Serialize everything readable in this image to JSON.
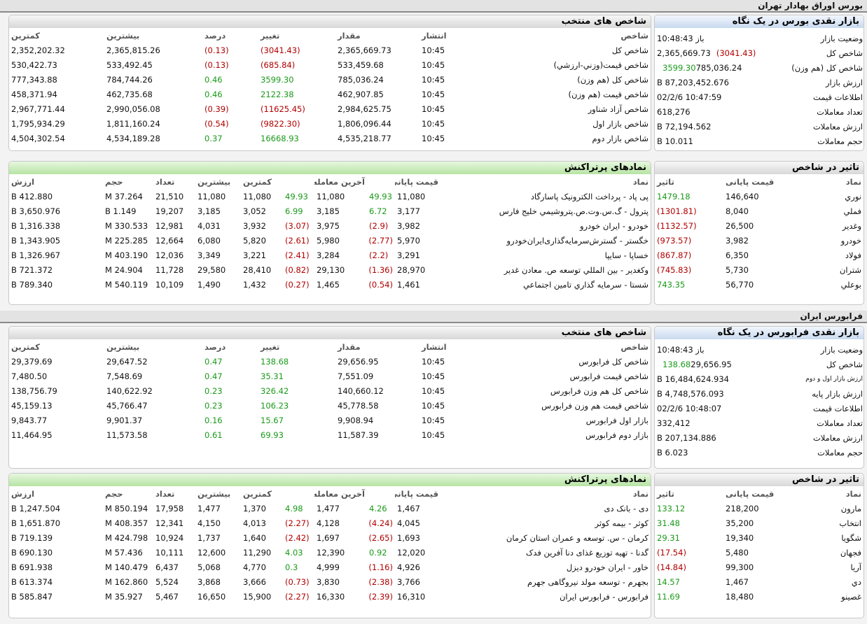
{
  "s1": {
    "title": "بورس اوراق بهادار تهران"
  },
  "s2": {
    "title": "فرابورس ایران"
  },
  "b_glance": {
    "title": "بازار نقدی بورس در یک نگاه",
    "rows": [
      {
        "label": "وضعیت بازار",
        "value": "باز 10:48:43",
        "chg": ""
      },
      {
        "label": "شاخص کل",
        "value": "2,365,669.73",
        "chg": "(3041.43)"
      },
      {
        "label": "شاخص کل (هم وزن)",
        "value": "785,036.24",
        "chg": "3599.30"
      },
      {
        "label": "ارزش بازار",
        "value": "87,203,452.676 B",
        "chg": ""
      },
      {
        "label": "اطلاعات قیمت",
        "value": "10:47:59 02/2/6",
        "chg": ""
      },
      {
        "label": "تعداد معاملات",
        "value": "618,276",
        "chg": ""
      },
      {
        "label": "ارزش معاملات",
        "value": "72,194.562 B",
        "chg": ""
      },
      {
        "label": "حجم معاملات",
        "value": "10.011 B",
        "chg": ""
      }
    ]
  },
  "b_idx": {
    "title": "شاخص های منتخب",
    "headers": [
      "شاخص",
      "انتشار",
      "مقدار",
      "تغییر",
      "درصد",
      "بیشترین",
      "کمترین"
    ],
    "rows": [
      [
        "شاخص كل",
        "10:45",
        "2,365,669.73",
        "(3041.43)",
        "(0.13)",
        "2,365,815.26",
        "2,352,202.32"
      ],
      [
        "شاخص قيمت(وزني-ارزشي)",
        "10:45",
        "533,459.68",
        "(685.84)",
        "(0.13)",
        "533,492.45",
        "530,422.73"
      ],
      [
        "شاخص كل (هم وزن)",
        "10:45",
        "785,036.24",
        "3599.30",
        "0.46",
        "784,744.26",
        "777,343.88"
      ],
      [
        "شاخص قيمت (هم وزن)",
        "10:45",
        "462,907.85",
        "2122.38",
        "0.46",
        "462,735.68",
        "458,371.94"
      ],
      [
        "شاخص آزاد شناور",
        "10:45",
        "2,984,625.75",
        "(11625.45)",
        "(0.39)",
        "2,990,056.08",
        "2,967,771.44"
      ],
      [
        "شاخص بازار اول",
        "10:45",
        "1,806,096.44",
        "(9822.30)",
        "(0.54)",
        "1,811,160.24",
        "1,795,934.29"
      ],
      [
        "شاخص بازار دوم",
        "10:45",
        "4,535,218.77",
        "16668.93",
        "0.37",
        "4,534,189.28",
        "4,504,302.54"
      ]
    ]
  },
  "b_impact": {
    "title": "تاثیر در شاخص",
    "headers": [
      "نماد",
      "قیمت پایانی",
      "تاثیر"
    ],
    "rows": [
      [
        "نوري",
        "146,640",
        "1479.18"
      ],
      [
        "فملي",
        "8,040",
        "(1301.81)"
      ],
      [
        "وغدير",
        "26,500",
        "(1132.57)"
      ],
      [
        "خودرو",
        "3,982",
        "(973.57)"
      ],
      [
        "فولاد",
        "6,350",
        "(867.87)"
      ],
      [
        "شتران",
        "5,730",
        "(745.83)"
      ],
      [
        "بوعلي",
        "56,770",
        "743.35"
      ]
    ]
  },
  "b_top": {
    "title": "نمادهای پرتراکنش",
    "headers": [
      "نماد",
      "قیمت پایانی",
      "",
      "آخرین معامله",
      "",
      "کمترین",
      "بیشترین",
      "تعداد",
      "حجم",
      "ارزش"
    ],
    "rows": [
      [
        "پی پاد - پرداخت الکترونیک پاسارگاد",
        "11,080",
        "49.93",
        "11,080",
        "49.93",
        "11,080",
        "11,080",
        "21,510",
        "37.264 M",
        "412.880 B"
      ],
      [
        "پترول - گ.س.وت.ص.پتروشیمي خلیج فارس",
        "3,177",
        "6.72",
        "3,185",
        "6.99",
        "3,052",
        "3,185",
        "19,207",
        "1.149 B",
        "3,650.976 B"
      ],
      [
        "خودرو - ایران خودرو",
        "3,982",
        "(2.9)",
        "3,975",
        "(3.07)",
        "3,932",
        "4,031",
        "12,981",
        "330.533 M",
        "1,316.338 B"
      ],
      [
        "خگستر - گسترش‌سرمایه‌گذاری‌ایران‌خودرو",
        "5,970",
        "(2.77)",
        "5,980",
        "(2.61)",
        "5,820",
        "6,080",
        "12,664",
        "225.285 M",
        "1,343.905 B"
      ],
      [
        "خساپا - سايپا",
        "3,291",
        "(2.2)",
        "3,284",
        "(2.41)",
        "3,221",
        "3,349",
        "12,036",
        "403.190 M",
        "1,326.967 B"
      ],
      [
        "وكغدير - بين المللي توسعه ص. معادن غدير",
        "28,970",
        "(1.36)",
        "29,130",
        "(0.82)",
        "28,410",
        "29,580",
        "11,728",
        "24.904 M",
        "721.372 B"
      ],
      [
        "شستا - سرمايه گذاري تامين اجتماعي",
        "1,461",
        "(0.54)",
        "1,465",
        "(0.27)",
        "1,432",
        "1,490",
        "10,109",
        "540.119 M",
        "789.340 B"
      ]
    ]
  },
  "f_glance": {
    "title": "بازار نقدی فرابورس در یک نگاه",
    "rows": [
      {
        "label": "وضعیت بازار",
        "value": "باز 10:48:43",
        "chg": "",
        "small": false
      },
      {
        "label": "شاخص کل",
        "value": "29,656.95",
        "chg": "138.68",
        "small": false
      },
      {
        "label": "ارزش بازار اول و دوم",
        "value": "16,484,624.934 B",
        "chg": "",
        "small": true
      },
      {
        "label": "ارزش بازار پایه",
        "value": "4,748,576.093 B",
        "chg": "",
        "small": false
      },
      {
        "label": "اطلاعات قیمت",
        "value": "10:48:07 02/2/6",
        "chg": "",
        "small": false
      },
      {
        "label": "تعداد معاملات",
        "value": "332,412",
        "chg": "",
        "small": false
      },
      {
        "label": "ارزش معاملات",
        "value": "207,134.886 B",
        "chg": "",
        "small": false
      },
      {
        "label": "حجم معاملات",
        "value": "6.023 B",
        "chg": "",
        "small": false
      }
    ]
  },
  "f_idx": {
    "title": "شاخص های منتخب",
    "headers": [
      "شاخص",
      "انتشار",
      "مقدار",
      "تغییر",
      "درصد",
      "بیشترین",
      "کمترین"
    ],
    "rows": [
      [
        "شاخص کل فرابورس",
        "10:45",
        "29,656.95",
        "138.68",
        "0.47",
        "29,647.52",
        "29,379.69"
      ],
      [
        "شاخص قیمت فرابورس",
        "10:45",
        "7,551.09",
        "35.31",
        "0.47",
        "7,548.69",
        "7,480.50"
      ],
      [
        "شاخص کل هم وزن فرابورس",
        "10:45",
        "140,660.12",
        "326.42",
        "0.23",
        "140,622.92",
        "138,756.79"
      ],
      [
        "شاخص قیمت هم وزن فرابورس",
        "10:45",
        "45,778.58",
        "106.23",
        "0.23",
        "45,766.47",
        "45,159.13"
      ],
      [
        "بازار اول فرابورس",
        "10:45",
        "9,908.94",
        "15.67",
        "0.16",
        "9,901.37",
        "9,843.77"
      ],
      [
        "بازار دوم فرابورس",
        "10:45",
        "11,587.39",
        "69.93",
        "0.61",
        "11,573.58",
        "11,464.95"
      ]
    ]
  },
  "f_impact": {
    "title": "تاثیر در شاخص",
    "headers": [
      "نماد",
      "قیمت پایانی",
      "تاثیر"
    ],
    "rows": [
      [
        "مارون",
        "218,200",
        "133.12"
      ],
      [
        "انتخاب",
        "35,200",
        "31.48"
      ],
      [
        "شگويا",
        "19,340",
        "29.31"
      ],
      [
        "فجهان",
        "5,480",
        "(17.54)"
      ],
      [
        "آريا",
        "99,300",
        "(14.84)"
      ],
      [
        "دي",
        "1,467",
        "14.57"
      ],
      [
        "غصينو",
        "18,480",
        "11.69"
      ]
    ]
  },
  "f_top": {
    "title": "نمادهای پرتراکنش",
    "headers": [
      "نماد",
      "قیمت پایانی",
      "",
      "آخرین معامله",
      "",
      "کمترین",
      "بیشترین",
      "تعداد",
      "حجم",
      "ارزش"
    ],
    "rows": [
      [
        "دی - بانک دی",
        "1,467",
        "4.26",
        "1,477",
        "4.98",
        "1,370",
        "1,477",
        "17,958",
        "850.194 M",
        "1,247.504 B"
      ],
      [
        "کوثر - بیمه کوثر",
        "4,045",
        "(4.24)",
        "4,128",
        "(2.27)",
        "4,013",
        "4,150",
        "12,341",
        "408.357 M",
        "1,651.870 B"
      ],
      [
        "کرمان - س. توسعه و عمران استان کرمان",
        "1,693",
        "(2.65)",
        "1,697",
        "(2.42)",
        "1,640",
        "1,737",
        "10,924",
        "424.798 M",
        "719.139 B"
      ],
      [
        "گدنا - تهیه توزیع غذای دنا آفرین فدک",
        "12,020",
        "0.92",
        "12,390",
        "4.03",
        "11,290",
        "12,600",
        "10,111",
        "57.436 M",
        "690.130 B"
      ],
      [
        "خاور - ایران خودرو دیزل",
        "4,926",
        "(1.16)",
        "4,999",
        "0.3",
        "4,770",
        "5,068",
        "6,437",
        "140.479 M",
        "691.938 B"
      ],
      [
        "بجهرم - توسعه مولد نیروگاهی جهرم",
        "3,766",
        "(2.38)",
        "3,830",
        "(0.73)",
        "3,666",
        "3,868",
        "5,524",
        "162.860 M",
        "613.374 B"
      ],
      [
        "فرابورس - فرابورس ایران",
        "16,310",
        "(2.39)",
        "16,330",
        "(2.27)",
        "15,900",
        "16,650",
        "5,467",
        "35.927 M",
        "585.847 B"
      ]
    ]
  }
}
